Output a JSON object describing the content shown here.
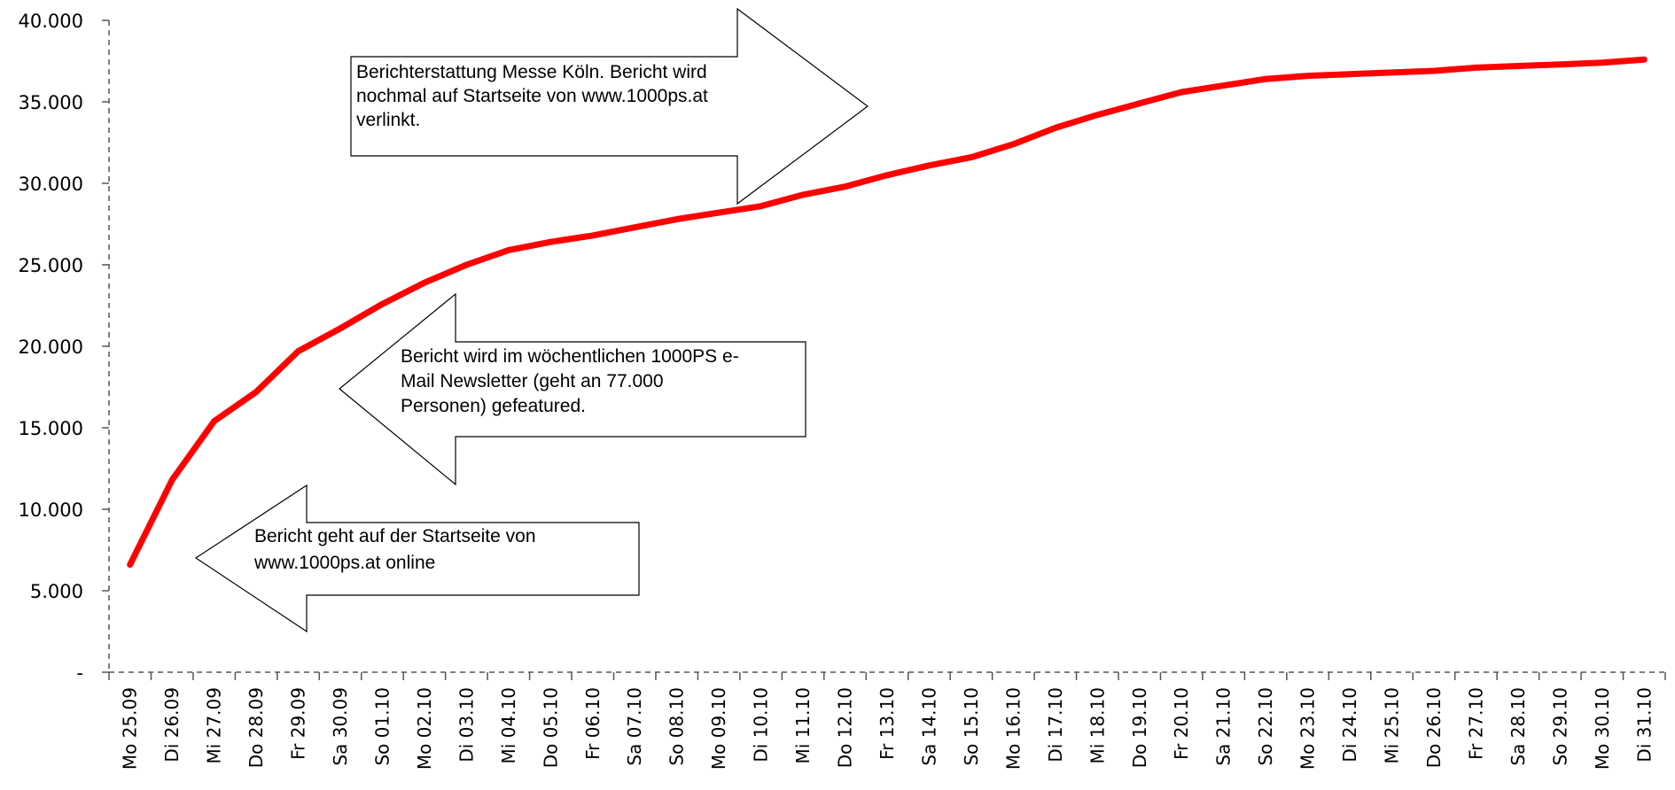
{
  "chart_data": {
    "type": "line",
    "title": "",
    "xlabel": "",
    "ylabel": "",
    "ylim": [
      0,
      40000
    ],
    "yticks": [
      {
        "value": 0,
        "label": "-"
      },
      {
        "value": 5000,
        "label": "5.000"
      },
      {
        "value": 10000,
        "label": "10.000"
      },
      {
        "value": 15000,
        "label": "15.000"
      },
      {
        "value": 20000,
        "label": "20.000"
      },
      {
        "value": 25000,
        "label": "25.000"
      },
      {
        "value": 30000,
        "label": "30.000"
      },
      {
        "value": 35000,
        "label": "35.000"
      },
      {
        "value": 40000,
        "label": "40.000"
      }
    ],
    "categories": [
      "Mo 25.09",
      "Di 26.09",
      "Mi 27.09",
      "Do 28.09",
      "Fr 29.09",
      "Sa 30.09",
      "So 01.10",
      "Mo 02.10",
      "Di 03.10",
      "Mi 04.10",
      "Do 05.10",
      "Fr 06.10",
      "Sa 07.10",
      "So 08.10",
      "Mo 09.10",
      "Di 10.10",
      "Mi 11.10",
      "Do 12.10",
      "Fr 13.10",
      "Sa 14.10",
      "So 15.10",
      "Mo 16.10",
      "Di 17.10",
      "Mi 18.10",
      "Do 19.10",
      "Fr 20.10",
      "Sa 21.10",
      "So 22.10",
      "Mo 23.10",
      "Di 24.10",
      "Mi 25.10",
      "Do 26.10",
      "Fr 27.10",
      "Sa 28.10",
      "So 29.10",
      "Mo 30.10",
      "Di 31.10"
    ],
    "series": [
      {
        "color": "#ff0000",
        "values": [
          6600,
          11800,
          15400,
          17200,
          19700,
          21100,
          22600,
          23900,
          25000,
          25900,
          26400,
          26800,
          27300,
          27800,
          28200,
          28600,
          29300,
          29800,
          30500,
          31100,
          31600,
          32400,
          33400,
          34200,
          34900,
          35600,
          36000,
          36400,
          36600,
          36700,
          36800,
          36900,
          37100,
          37200,
          37300,
          37400,
          37600
        ]
      }
    ],
    "grid": false,
    "legend": "none",
    "axis_style": "dashed"
  },
  "annotations": [
    {
      "id": "messe",
      "direction": "right",
      "lines": [
        "Berichterstattung Messe Köln. Bericht wird",
        "nochmal auf Startseite von www.1000ps.at",
        "verlinkt."
      ]
    },
    {
      "id": "newsletter",
      "direction": "left",
      "lines": [
        "Bericht wird im wöchentlichen 1000PS e-",
        "Mail Newsletter (geht an 77.000",
        "Personen) gefeatured."
      ]
    },
    {
      "id": "startseite",
      "direction": "left",
      "lines": [
        "Bericht geht auf der Startseite von",
        "www.1000ps.at online"
      ]
    }
  ]
}
